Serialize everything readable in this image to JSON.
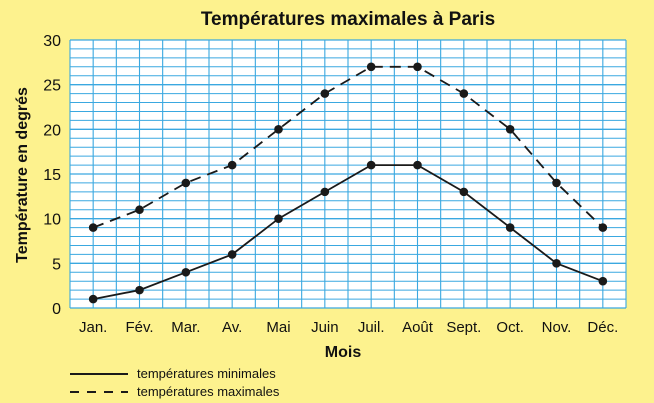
{
  "chart_data": {
    "type": "line",
    "title": "Températures maximales à Paris",
    "xlabel": "Mois",
    "ylabel": "Température en degrés",
    "categories": [
      "Jan.",
      "Fév.",
      "Mar.",
      "Av.",
      "Mai",
      "Juin",
      "Juil.",
      "Août",
      "Sept.",
      "Oct.",
      "Nov.",
      "Déc."
    ],
    "yticks": [
      "0",
      "5",
      "10",
      "15",
      "20",
      "25",
      "30"
    ],
    "ylim": [
      0,
      30
    ],
    "grid": true,
    "legend_position": "bottom-left",
    "series": [
      {
        "name": "températures minimales",
        "style": "solid",
        "values": [
          1,
          2,
          4,
          6,
          10,
          13,
          16,
          16,
          13,
          9,
          5,
          3
        ]
      },
      {
        "name": "températures maximales",
        "style": "dashed",
        "values": [
          9,
          11,
          14,
          16,
          20,
          24,
          27,
          27,
          24,
          20,
          14,
          9
        ]
      }
    ],
    "colors": {
      "background": "#fdf28e",
      "grid": "#3aa8e0",
      "plot_background": "#ffffff",
      "line": "#1a1a1a"
    }
  }
}
